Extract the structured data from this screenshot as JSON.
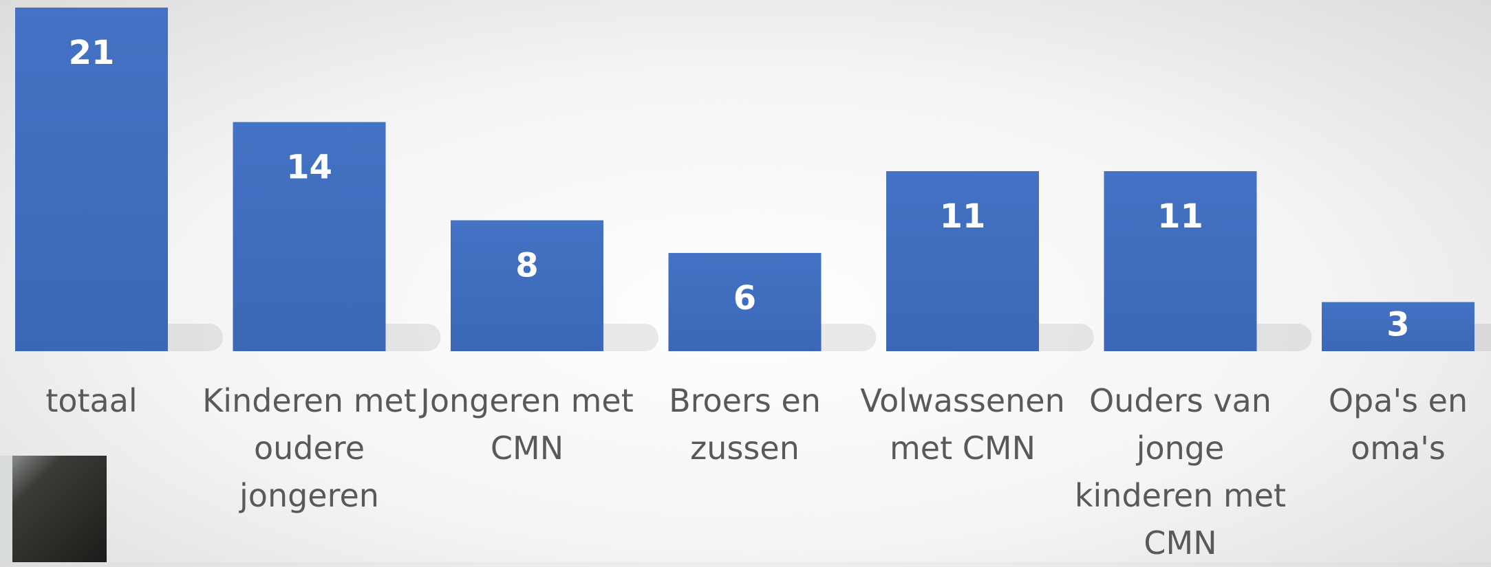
{
  "chart_data": {
    "type": "bar",
    "categories": [
      "totaal",
      "Kinderen met oudere jongeren",
      "Jongeren met CMN",
      "Broers en zussen",
      "Volwassenen met CMN",
      "Ouders van jonge kinderen met CMN",
      "Opa's en oma's"
    ],
    "values": [
      21,
      14,
      8,
      6,
      11,
      11,
      3
    ],
    "color": "#4472c4"
  }
}
